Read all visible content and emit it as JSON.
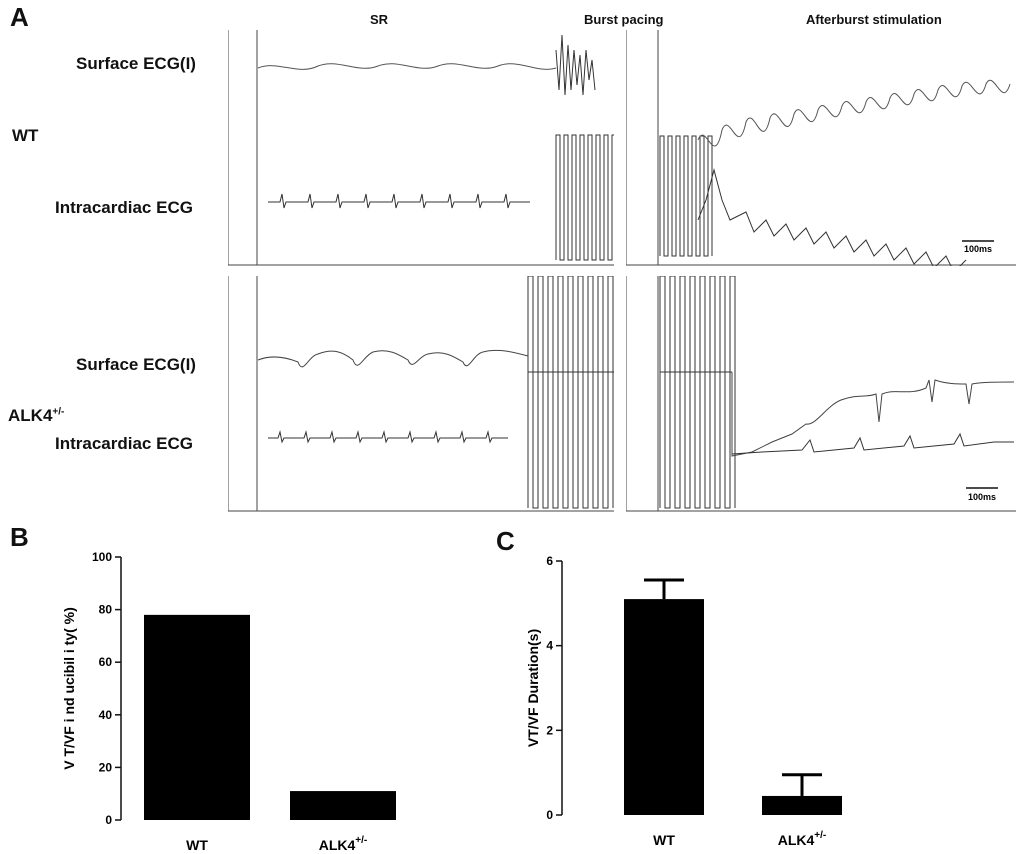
{
  "panelA": {
    "letter": "A",
    "headers": {
      "sr": "SR",
      "burst": "Burst pacing",
      "after": "Afterburst stimulation"
    },
    "groups": {
      "wt": "WT",
      "alk4": "ALK4",
      "alk4_sup": "+/-"
    },
    "rows": {
      "surface": "Surface ECG(I)",
      "intracardiac": "Intracardiac ECG"
    },
    "scalebar": "100ms"
  },
  "chart_data": [
    {
      "panel": "B",
      "type": "bar",
      "categories": [
        "WT",
        "ALK4"
      ],
      "category_sup": [
        "",
        "+/-"
      ],
      "values": [
        78,
        11
      ],
      "ylabel": "V T/VF i nd ucibil i ty( %)",
      "ylim": [
        0,
        100
      ],
      "yticks": [
        0,
        20,
        40,
        60,
        80,
        100
      ]
    },
    {
      "panel": "C",
      "type": "bar",
      "categories": [
        "WT",
        "ALK4"
      ],
      "category_sup": [
        "",
        "+/-"
      ],
      "values": [
        5.1,
        0.45
      ],
      "errors": [
        0.45,
        0.5
      ],
      "ylabel": "VT/VF Duration(s)",
      "ylim": [
        0,
        6
      ],
      "yticks": [
        0,
        2,
        4,
        6
      ]
    }
  ]
}
